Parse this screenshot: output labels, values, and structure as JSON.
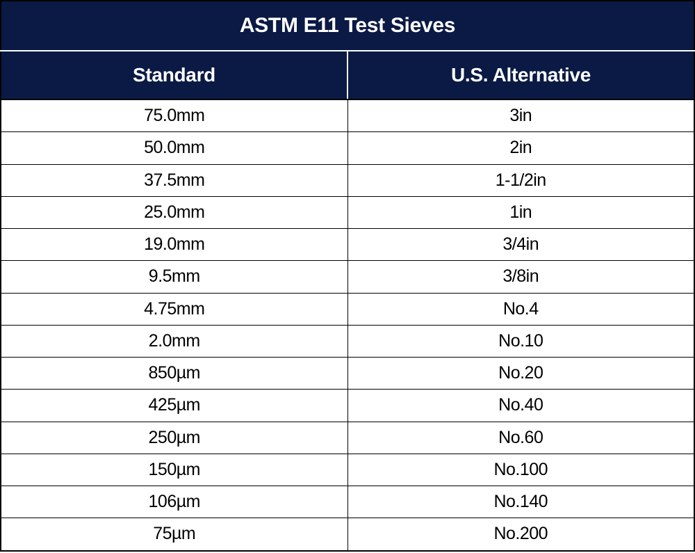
{
  "table": {
    "title": "ASTM E11 Test Sieves",
    "columns": [
      "Standard",
      "U.S. Alternative"
    ],
    "rows": [
      [
        "75.0mm",
        "3in"
      ],
      [
        "50.0mm",
        "2in"
      ],
      [
        "37.5mm",
        "1-1/2in"
      ],
      [
        "25.0mm",
        "1in"
      ],
      [
        "19.0mm",
        "3/4in"
      ],
      [
        "9.5mm",
        "3/8in"
      ],
      [
        "4.75mm",
        "No.4"
      ],
      [
        "2.0mm",
        "No.10"
      ],
      [
        "850µm",
        "No.20"
      ],
      [
        "425µm",
        "No.40"
      ],
      [
        "250µm",
        "No.60"
      ],
      [
        "150µm",
        "No.100"
      ],
      [
        "106µm",
        "No.140"
      ],
      [
        "75µm",
        "No.200"
      ]
    ],
    "colors": {
      "header_bg": "#0a1a44",
      "header_text": "#ffffff",
      "cell_bg": "#ffffff",
      "cell_text": "#000000",
      "border": "#000000",
      "inner_header_divider": "#ffffff"
    },
    "fontsize": {
      "title": 30,
      "header": 28,
      "cell": 25
    }
  }
}
